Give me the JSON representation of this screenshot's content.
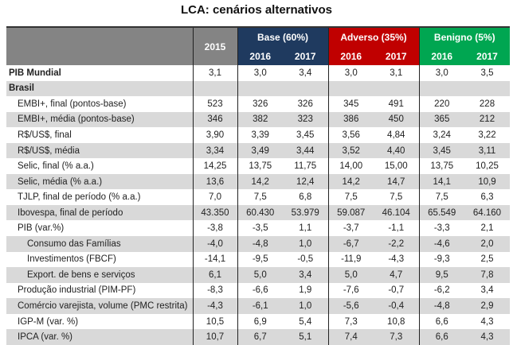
{
  "title": "LCA: cenários alternativos",
  "header": {
    "year_2015": "2015",
    "groups": [
      {
        "label": "Base (60%)",
        "color": "#1f3a5f",
        "years": [
          "2016",
          "2017"
        ]
      },
      {
        "label": "Adverso (35%)",
        "color": "#c00000",
        "years": [
          "2016",
          "2017"
        ]
      },
      {
        "label": "Benigno (5%)",
        "color": "#00a651",
        "years": [
          "2016",
          "2017"
        ]
      }
    ]
  },
  "rows": [
    {
      "label": "PIB Mundial",
      "level": 0,
      "bold": true,
      "values": [
        "3,1",
        "3,0",
        "3,4",
        "3,0",
        "3,1",
        "3,0",
        "3,5"
      ]
    },
    {
      "label": "Brasil",
      "level": 0,
      "bold": true,
      "values": [
        "",
        "",
        "",
        "",
        "",
        "",
        ""
      ]
    },
    {
      "label": "EMBI+, final (pontos-base)",
      "level": 1,
      "values": [
        "523",
        "326",
        "326",
        "345",
        "491",
        "220",
        "228"
      ]
    },
    {
      "label": "EMBI+, média (pontos-base)",
      "level": 1,
      "values": [
        "346",
        "382",
        "323",
        "386",
        "450",
        "365",
        "212"
      ]
    },
    {
      "label": "R$/US$, final",
      "level": 1,
      "values": [
        "3,90",
        "3,39",
        "3,45",
        "3,56",
        "4,84",
        "3,24",
        "3,22"
      ]
    },
    {
      "label": "R$/US$, média",
      "level": 1,
      "values": [
        "3,34",
        "3,49",
        "3,44",
        "3,52",
        "4,40",
        "3,45",
        "3,11"
      ]
    },
    {
      "label": "Selic, final (% a.a.)",
      "level": 1,
      "values": [
        "14,25",
        "13,75",
        "11,75",
        "14,00",
        "15,00",
        "13,75",
        "10,25"
      ]
    },
    {
      "label": "Selic, média (% a.a.)",
      "level": 1,
      "values": [
        "13,6",
        "14,2",
        "12,4",
        "14,2",
        "14,7",
        "14,1",
        "10,9"
      ]
    },
    {
      "label": "TJLP, final de período (% a.a.)",
      "level": 1,
      "values": [
        "7,0",
        "7,5",
        "6,8",
        "7,5",
        "7,5",
        "7,5",
        "6,3"
      ]
    },
    {
      "label": "Ibovespa, final de período",
      "level": 1,
      "values": [
        "43.350",
        "60.430",
        "53.979",
        "59.087",
        "46.104",
        "65.549",
        "64.160"
      ]
    },
    {
      "label": "PIB (var.%)",
      "level": 1,
      "values": [
        "-3,8",
        "-3,5",
        "1,1",
        "-3,7",
        "-1,1",
        "-3,3",
        "2,1"
      ]
    },
    {
      "label": "Consumo das Famílias",
      "level": 2,
      "values": [
        "-4,0",
        "-4,8",
        "1,0",
        "-6,7",
        "-2,2",
        "-4,6",
        "2,0"
      ]
    },
    {
      "label": "Investimentos (FBCF)",
      "level": 2,
      "values": [
        "-14,1",
        "-9,5",
        "-0,5",
        "-11,9",
        "-4,3",
        "-9,3",
        "2,5"
      ]
    },
    {
      "label": "Export. de bens e serviços",
      "level": 2,
      "values": [
        "6,1",
        "5,0",
        "3,4",
        "5,0",
        "4,7",
        "9,5",
        "7,8"
      ]
    },
    {
      "label": "Produção industrial (PIM-PF)",
      "level": 1,
      "values": [
        "-8,3",
        "-6,6",
        "1,9",
        "-7,6",
        "-0,7",
        "-6,2",
        "3,4"
      ]
    },
    {
      "label": "Comércio varejista, volume (PMC restrita)",
      "level": 1,
      "values": [
        "-4,3",
        "-6,1",
        "1,0",
        "-5,6",
        "-0,4",
        "-4,8",
        "2,9"
      ]
    },
    {
      "label": "IGP-M (var. %)",
      "level": 1,
      "values": [
        "10,5",
        "6,9",
        "5,4",
        "7,3",
        "10,8",
        "6,6",
        "4,3"
      ]
    },
    {
      "label": "IPCA (var. %)",
      "level": 1,
      "values": [
        "10,7",
        "6,7",
        "5,1",
        "7,4",
        "7,3",
        "6,6",
        "4,3"
      ]
    }
  ]
}
